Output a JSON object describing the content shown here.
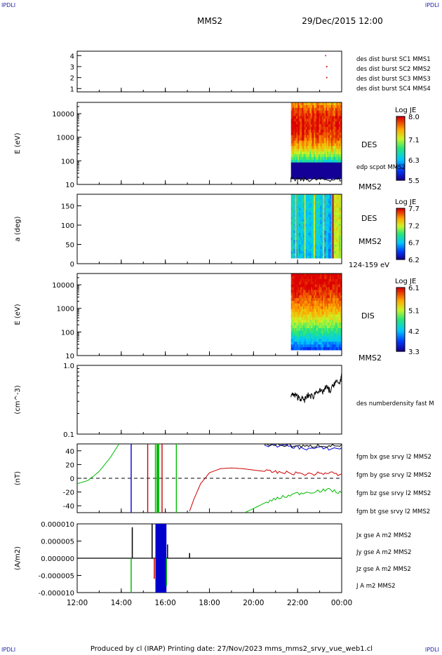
{
  "corners": {
    "tl": "IPDLI",
    "tr": "IPDLI",
    "bl": "IPDLI",
    "br": "IPDLI"
  },
  "header": {
    "spacecraft": "MMS2",
    "datetime": "29/Dec/2015 12:00"
  },
  "footer": "Produced by cl (IRAP)   Printing date: 27/Nov/2023   mms_mms2_srvy_vue_web1.cl",
  "time_axis": {
    "start_hour": 12,
    "end_hour": 24,
    "ticks": [
      "12:00",
      "14:00",
      "16:00",
      "18:00",
      "20:00",
      "22:00",
      "00:00"
    ]
  },
  "colors": {
    "c1": "#0000cc",
    "c2": "#cc00cc",
    "c3": "#cc0000",
    "c4": "#00bb00",
    "black": "#000000"
  },
  "chart_data": [
    {
      "type": "scatter",
      "name": "panel-burst",
      "yticks": [
        "1",
        "2",
        "3",
        "4"
      ],
      "ylim": [
        0.7,
        4.4
      ],
      "legend": [
        {
          "label": "des dist burst SC1 MMS1",
          "color": "#0000cc"
        },
        {
          "label": "des dist burst SC2 MMS2",
          "color": "#cc00cc"
        },
        {
          "label": "des dist burst SC3 MMS3",
          "color": "#cc0000"
        },
        {
          "label": "des dist burst SC4 MMS4",
          "color": "#00bb00"
        }
      ],
      "points": [
        {
          "x": 23.3,
          "y": 3.0
        },
        {
          "x": 23.3,
          "y": 2.0
        },
        {
          "x": 23.25,
          "y": 4.0
        }
      ]
    },
    {
      "type": "heatmap",
      "name": "panel-des-energy",
      "ylabel": "E (eV)",
      "yscale": "log",
      "ylim": [
        10,
        30000
      ],
      "yticks": [
        "10",
        "100",
        "1000",
        "10000"
      ],
      "data_start_hour": 21.7,
      "label": "DES",
      "sub_label": "MMS2",
      "overlay_label": "edp scpot MMS2",
      "colorbar": {
        "title": "Log JE",
        "ticks": [
          "8.0",
          "7.1",
          "6.3",
          "5.5"
        ],
        "min": 5.5,
        "max": 8.0
      }
    },
    {
      "type": "heatmap",
      "name": "panel-des-pitch",
      "ylabel": "a (deg)",
      "ylim": [
        0,
        180
      ],
      "yticks": [
        "0",
        "50",
        "100",
        "150"
      ],
      "data_start_hour": 21.7,
      "label": "DES",
      "sub_label": "MMS2",
      "below_label": "124-159 eV",
      "colorbar": {
        "title": "Log JE",
        "ticks": [
          "7.7",
          "7.2",
          "6.7",
          "6.2"
        ],
        "min": 6.2,
        "max": 7.7
      }
    },
    {
      "type": "heatmap",
      "name": "panel-dis-energy",
      "ylabel": "E (eV)",
      "yscale": "log",
      "ylim": [
        10,
        30000
      ],
      "yticks": [
        "10",
        "100",
        "1000",
        "10000"
      ],
      "data_start_hour": 21.7,
      "label": "DIS",
      "sub_label": "MMS2",
      "colorbar": {
        "title": "Log JE",
        "ticks": [
          "6.1",
          "5.1",
          "4.2",
          "3.3"
        ],
        "min": 3.3,
        "max": 6.1
      }
    },
    {
      "type": "line",
      "name": "panel-density",
      "ylabel": "(cm^-3)",
      "yscale": "log",
      "ylim": [
        0.1,
        1.0
      ],
      "yticks": [
        "0.1",
        "1.0"
      ],
      "series": [
        {
          "name": "des numberdensity fast M",
          "color": "#000000",
          "x": [
            21.7,
            21.9,
            22.1,
            22.3,
            22.5,
            22.7,
            22.9,
            23.1,
            23.3,
            23.5,
            23.7,
            23.9,
            24.0
          ],
          "y": [
            0.38,
            0.36,
            0.34,
            0.31,
            0.37,
            0.35,
            0.44,
            0.4,
            0.48,
            0.42,
            0.58,
            0.54,
            0.72
          ]
        }
      ]
    },
    {
      "type": "line",
      "name": "panel-fgm",
      "ylabel": "(nT)",
      "ylim": [
        -50,
        50
      ],
      "yticks": [
        "-40",
        "-20",
        "0",
        "20",
        "40"
      ],
      "series": [
        {
          "name": "fgm bx gse srvy l2 MMS2",
          "color": "#cc0000",
          "x": [
            17.1,
            17.3,
            17.6,
            18.0,
            18.5,
            19.0,
            19.5,
            20.0,
            20.5,
            21.0,
            21.5,
            22.0,
            22.5,
            23.0,
            23.5,
            24.0
          ],
          "y": [
            -48,
            -30,
            -8,
            8,
            14,
            15,
            14,
            12,
            10,
            9,
            8,
            7,
            6,
            7,
            8,
            4
          ]
        },
        {
          "name": "fgm by gse srvy l2 MMS2",
          "color": "#00bb00",
          "x": [
            12.0,
            12.5,
            13.0,
            13.5,
            13.9,
            19.6,
            20.0,
            20.5,
            21.0,
            21.5,
            22.0,
            22.5,
            23.0,
            23.5,
            24.0
          ],
          "y": [
            -8,
            -3,
            10,
            30,
            50,
            -50,
            -44,
            -36,
            -30,
            -26,
            -22,
            -20,
            -18,
            -17,
            -22
          ]
        },
        {
          "name": "fgm bz gse srvy l2 MMS2",
          "color": "#0000cc",
          "x": [
            20.5,
            21.0,
            21.5,
            22.0,
            22.5,
            23.0,
            23.5,
            24.0
          ],
          "y": [
            48,
            48,
            47,
            45,
            43,
            44,
            43,
            44
          ]
        },
        {
          "name": "fgm bt gse srvy l2 MMS2",
          "color": "#000000",
          "x": [
            20.5,
            21.0,
            21.5,
            22.0,
            22.5,
            23.0,
            23.5,
            24.0
          ],
          "y": [
            49,
            49,
            48,
            47,
            46,
            48,
            47,
            48
          ]
        }
      ]
    },
    {
      "type": "line",
      "name": "panel-current",
      "ylabel": "(A/m2)",
      "ylim": [
        -1e-05,
        1e-05
      ],
      "yticks": [
        "-0.000010",
        "-0.000005",
        "0.000000",
        "0.000005",
        "0.000010"
      ],
      "series": [
        {
          "name": "Jx gse A m2 MMS2",
          "color": "#cc0000"
        },
        {
          "name": "Jy gse A m2 MMS2",
          "color": "#00bb00"
        },
        {
          "name": "Jz gse A m2 MMS2",
          "color": "#0000cc"
        },
        {
          "name": "J A m2 MMS2",
          "color": "#000000"
        }
      ]
    }
  ]
}
